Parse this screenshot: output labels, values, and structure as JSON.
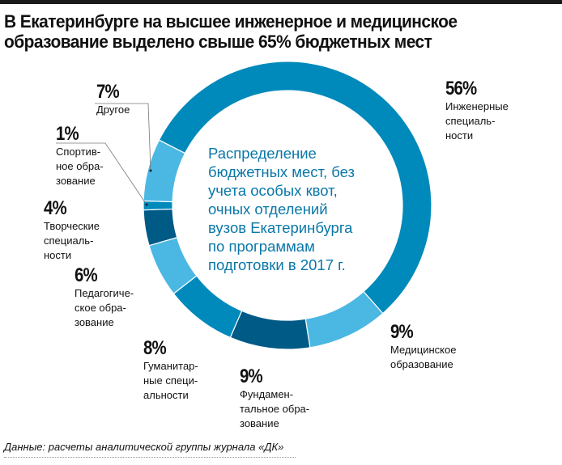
{
  "title": [
    "В Екатеринбурге на высшее инженерное и медицинское",
    "образование выделено свыше 65% бюджетных мест"
  ],
  "center_text": [
    "Распределение",
    "бюджетных мест, без",
    "учета особых квот,",
    "очных отделений",
    "вузов Екатеринбурга",
    "по программам",
    "подготовки в 2017 г."
  ],
  "footnote": "Данные: расчеты аналитической группы журнала «ДК»",
  "chart_data": {
    "type": "pie",
    "subtype": "donut",
    "title": "В Екатеринбурге на высшее инженерное и медицинское образование выделено свыше 65% бюджетных мест",
    "unit": "%",
    "slices": [
      {
        "name": "Инженерные специальности",
        "value": 56,
        "pct": "56%",
        "lines": [
          "Инженерные",
          "специаль-",
          "ности"
        ],
        "color": "#0089bb"
      },
      {
        "name": "Медицинское образование",
        "value": 9,
        "pct": "9%",
        "lines": [
          "Медицинское",
          "образование"
        ],
        "color": "#4bb7e3"
      },
      {
        "name": "Фундаментальное образование",
        "value": 9,
        "pct": "9%",
        "lines": [
          "Фундамен-",
          "тальное обра-",
          "зование"
        ],
        "color": "#005a86"
      },
      {
        "name": "Гуманитарные специальности",
        "value": 8,
        "pct": "8%",
        "lines": [
          "Гуманитар-",
          "ные специ-",
          "альности"
        ],
        "color": "#0089bb"
      },
      {
        "name": "Педагогическое образование",
        "value": 6,
        "pct": "6%",
        "lines": [
          "Педагогиче-",
          "ское обра-",
          "зование"
        ],
        "color": "#4bb7e3"
      },
      {
        "name": "Творческие специальности",
        "value": 4,
        "pct": "4%",
        "lines": [
          "Творческие",
          "специаль-",
          "ности"
        ],
        "color": "#005a86"
      },
      {
        "name": "Спортивное образование",
        "value": 1,
        "pct": "1%",
        "lines": [
          "Спортив-",
          "ное обра-",
          "зование"
        ],
        "color": "#0089bb"
      },
      {
        "name": "Другое",
        "value": 7,
        "pct": "7%",
        "lines": [
          "Другое"
        ],
        "color": "#4bb7e3"
      }
    ]
  }
}
